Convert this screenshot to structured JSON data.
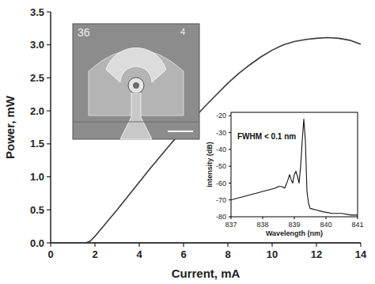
{
  "chart_data": [
    {
      "type": "line",
      "x_label": "Current, mA",
      "y_label": "Power, mW",
      "color": "#3a3a3a",
      "x": [
        0,
        1,
        1.6,
        1.8,
        2,
        2.5,
        3,
        3.5,
        4,
        4.5,
        5,
        5.5,
        6,
        6.5,
        7,
        7.5,
        8,
        8.5,
        9,
        9.5,
        10,
        10.5,
        11,
        11.5,
        12,
        12.5,
        13,
        13.5,
        14
      ],
      "values": [
        0,
        0,
        0,
        0.03,
        0.1,
        0.3,
        0.5,
        0.71,
        0.92,
        1.13,
        1.33,
        1.53,
        1.72,
        1.9,
        2.08,
        2.25,
        2.42,
        2.57,
        2.7,
        2.82,
        2.92,
        3.0,
        3.05,
        3.08,
        3.1,
        3.11,
        3.1,
        3.07,
        3.01
      ],
      "xlim": [
        0,
        14
      ],
      "xticks": [
        0,
        2,
        4,
        6,
        8,
        10,
        12,
        14
      ],
      "ylim": [
        0,
        3.5
      ],
      "yticks": [
        {
          "value": 0,
          "label": "0.0"
        },
        0.5,
        {
          "value": 1,
          "label": "1.0"
        },
        1.5,
        {
          "value": 2,
          "label": "2.0"
        },
        2.5,
        {
          "value": 3,
          "label": "3.0"
        },
        3.5
      ]
    },
    {
      "type": "line",
      "x_label": "Wavelength (nm)",
      "y_label": "Intensity (dB)",
      "annotation": "FWHM < 0.1 nm",
      "color": "#111111",
      "x": [
        837,
        837.2,
        837.4,
        837.6,
        837.8,
        838,
        838.2,
        838.4,
        838.5,
        838.6,
        838.7,
        838.8,
        838.85,
        838.9,
        838.95,
        839.0,
        839.05,
        839.1,
        839.15,
        839.2,
        839.25,
        839.3,
        839.35,
        839.4,
        839.45,
        839.5,
        839.7,
        839.9,
        840.2,
        840.5,
        840.8,
        841
      ],
      "values": [
        -70,
        -69,
        -68,
        -67,
        -66,
        -65,
        -64,
        -63,
        -62,
        -62,
        -63,
        -58,
        -55,
        -58,
        -60,
        -55,
        -53,
        -56,
        -60,
        -50,
        -35,
        -22,
        -35,
        -65,
        -72,
        -75,
        -76,
        -77,
        -78,
        -78,
        -79,
        -79
      ],
      "xlim": [
        837,
        841
      ],
      "xticks": [
        837,
        838,
        839,
        840,
        841
      ],
      "ylim": [
        -80,
        -18
      ],
      "yticks": [
        -80,
        -70,
        -60,
        -50,
        -40,
        -30,
        -20
      ]
    }
  ],
  "inset_image": {
    "labels": [
      "36",
      "4"
    ]
  }
}
